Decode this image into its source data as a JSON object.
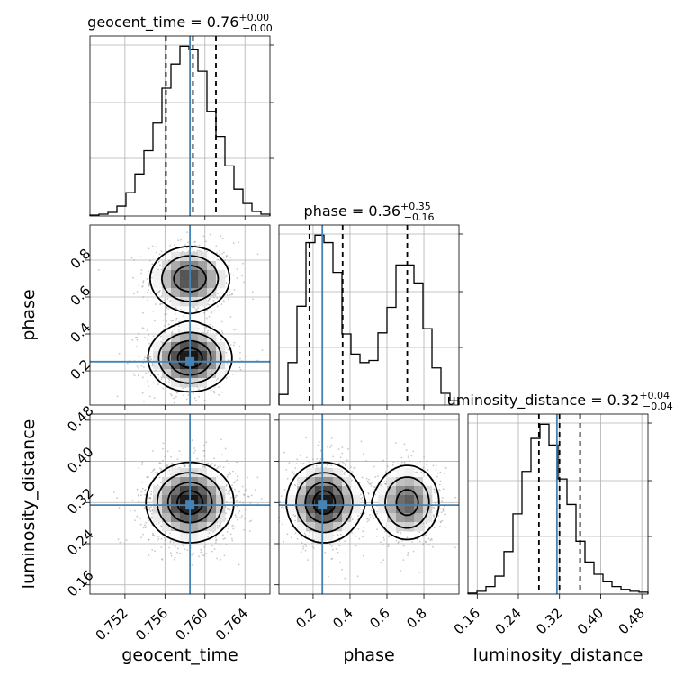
{
  "figure": {
    "colors": {
      "truth": "#4682b4",
      "line": "#000000",
      "grid": "#b0b0b0",
      "density": "#555555"
    }
  },
  "chart_data": {
    "type": "corner",
    "parameters": [
      "geocent_time",
      "phase",
      "luminosity_distance"
    ],
    "truths": {
      "geocent_time": 0.7585,
      "phase": 0.25,
      "luminosity_distance": 0.315
    },
    "titles": [
      {
        "parameter": "geocent_time",
        "prefix": "geocent_time = 0.76",
        "plus": "+0.00",
        "minus": "−0.00"
      },
      {
        "parameter": "phase",
        "prefix": "phase = 0.36",
        "plus": "+0.35",
        "minus": "−0.16"
      },
      {
        "parameter": "luminosity_distance",
        "prefix": "luminosity_distance = 0.32",
        "plus": "+0.04",
        "minus": "−0.04"
      }
    ],
    "axis_labels": {
      "geocent_time": "geocent_time",
      "phase": "phase",
      "luminosity_distance": "luminosity_distance"
    },
    "ranges": {
      "geocent_time": [
        0.7485,
        0.7665
      ],
      "phase": [
        0.015,
        0.99
      ],
      "luminosity_distance": [
        0.142,
        0.492
      ]
    },
    "ticks": {
      "geocent_time": [
        "0.752",
        "0.756",
        "0.760",
        "0.764"
      ],
      "phase": [
        "0.2",
        "0.4",
        "0.6",
        "0.8"
      ],
      "luminosity_distance": [
        "0.16",
        "0.24",
        "0.32",
        "0.40",
        "0.48"
      ]
    },
    "grid": true,
    "histograms": [
      {
        "parameter": "geocent_time",
        "quantiles": [
          0.7561,
          0.7588,
          0.7611
        ],
        "bin_edges": [
          0.7485,
          0.7494,
          0.7503,
          0.7512,
          0.7521,
          0.753,
          0.7539,
          0.7548,
          0.7557,
          0.7566,
          0.7575,
          0.7584,
          0.7593,
          0.7602,
          0.7611,
          0.762,
          0.7629,
          0.7638,
          0.7647,
          0.7656,
          0.7665
        ],
        "counts": [
          1,
          2,
          4,
          11,
          26,
          47,
          73,
          104,
          143,
          170,
          190,
          186,
          162,
          117,
          89,
          56,
          30,
          14,
          5,
          2
        ]
      },
      {
        "parameter": "phase",
        "quantiles": [
          0.18,
          0.36,
          0.71
        ],
        "bin_edges": [
          0.015,
          0.0638,
          0.1125,
          0.1613,
          0.21,
          0.2588,
          0.3075,
          0.3563,
          0.405,
          0.4538,
          0.5025,
          0.5513,
          0.6,
          0.6488,
          0.6975,
          0.7463,
          0.795,
          0.8438,
          0.8925,
          0.9413,
          0.99
        ],
        "counts": [
          10,
          40,
          93,
          153,
          160,
          153,
          125,
          67,
          48,
          40,
          42,
          68,
          92,
          132,
          132,
          115,
          72,
          35,
          11,
          4
        ]
      },
      {
        "parameter": "luminosity_distance",
        "quantiles": [
          0.28,
          0.32,
          0.36
        ],
        "bin_edges": [
          0.142,
          0.1595,
          0.177,
          0.1945,
          0.212,
          0.2295,
          0.247,
          0.2645,
          0.282,
          0.2995,
          0.317,
          0.3345,
          0.352,
          0.3695,
          0.387,
          0.4045,
          0.422,
          0.4395,
          0.457,
          0.4745,
          0.492
        ],
        "counts": [
          1,
          3,
          8,
          19,
          45,
          85,
          130,
          165,
          180,
          158,
          122,
          95,
          56,
          34,
          21,
          13,
          8,
          5,
          3,
          2
        ]
      }
    ],
    "contours_2d": [
      {
        "x": "geocent_time",
        "y": "phase",
        "modes": [
          {
            "cx": 0.7585,
            "cy": 0.7,
            "sx": 0.00215,
            "sy": 0.094,
            "weight": 0.45
          },
          {
            "cx": 0.7585,
            "cy": 0.27,
            "sx": 0.00215,
            "sy": 0.094,
            "weight": 0.55
          }
        ]
      },
      {
        "x": "geocent_time",
        "y": "luminosity_distance",
        "modes": [
          {
            "cx": 0.7585,
            "cy": 0.32,
            "sx": 0.00225,
            "sy": 0.04,
            "weight": 1.0
          }
        ]
      },
      {
        "x": "phase",
        "y": "luminosity_distance",
        "modes": [
          {
            "cx": 0.26,
            "cy": 0.32,
            "sx": 0.105,
            "sy": 0.04,
            "weight": 0.57
          },
          {
            "cx": 0.71,
            "cy": 0.32,
            "sx": 0.095,
            "sy": 0.04,
            "weight": 0.43
          }
        ]
      }
    ]
  }
}
